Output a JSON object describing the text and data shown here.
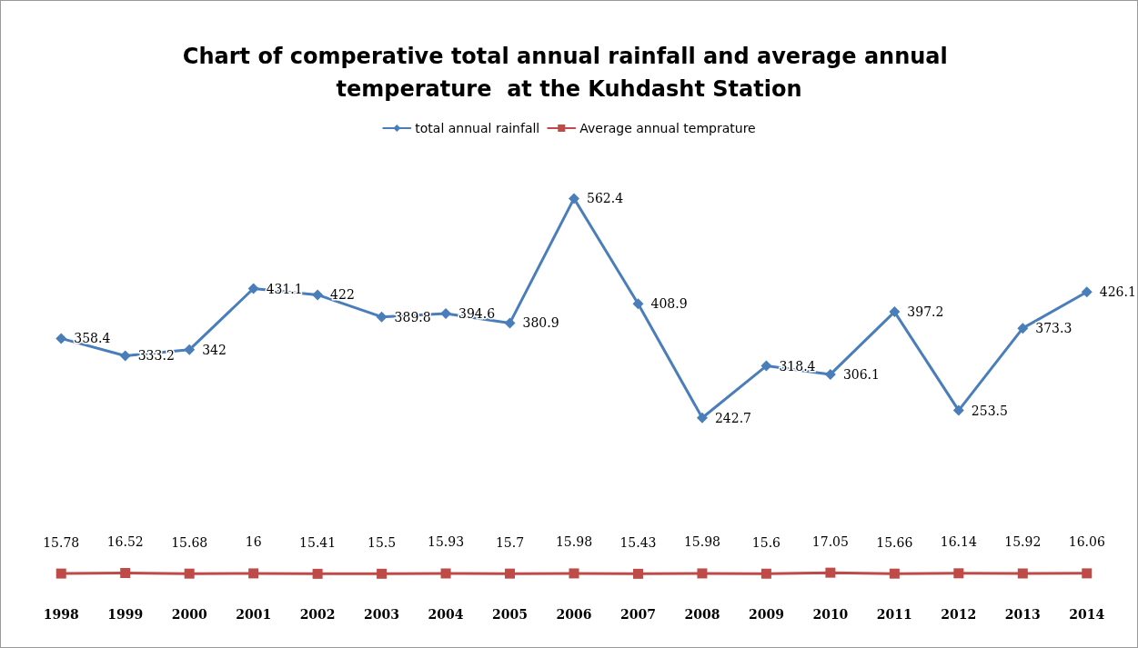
{
  "chart_data": {
    "type": "line",
    "title": "Chart of comperative total annual rainfall and average annual temperature  at the Kuhdasht Station",
    "categories": [
      "1998",
      "1999",
      "2000",
      "2001",
      "2002",
      "2003",
      "2004",
      "2005",
      "2006",
      "2007",
      "2008",
      "2009",
      "2010",
      "2011",
      "2012",
      "2013",
      "2014"
    ],
    "series": [
      {
        "name": "total annual rainfall",
        "color": "#4a7ebb",
        "marker": "diamond",
        "values": [
          358.4,
          333.2,
          342,
          431.1,
          422,
          389.8,
          394.6,
          380.9,
          562.4,
          408.9,
          242.7,
          318.4,
          306.1,
          397.2,
          253.5,
          373.3,
          426.1
        ]
      },
      {
        "name": "Average annual temprature",
        "color": "#be4b48",
        "marker": "square",
        "values": [
          15.78,
          16.52,
          15.68,
          16,
          15.41,
          15.5,
          15.93,
          15.7,
          15.98,
          15.43,
          15.98,
          15.6,
          17.05,
          15.66,
          16.14,
          15.92,
          16.06
        ]
      }
    ],
    "data_labels": true,
    "legend": "top",
    "grid": false
  }
}
